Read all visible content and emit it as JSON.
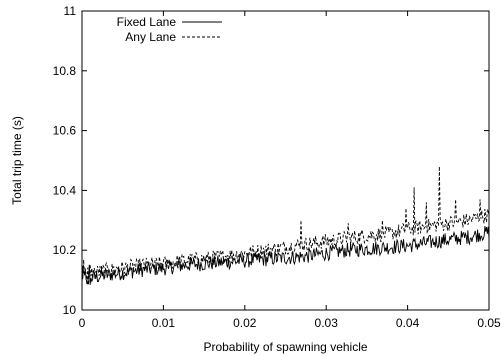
{
  "chart_data": {
    "type": "line",
    "xlabel": "Probability of spawning vehicle",
    "ylabel": "Total trip time (s)",
    "xlim": [
      0,
      0.05
    ],
    "ylim": [
      10,
      11
    ],
    "x_ticks": [
      "0",
      "0.01",
      "0.02",
      "0.03",
      "0.04",
      "0.05"
    ],
    "y_ticks": [
      "10",
      "10.2",
      "10.4",
      "10.6",
      "10.8",
      "11"
    ],
    "grid": false,
    "legend_position": "top-left",
    "series": [
      {
        "name": "Fixed Lane",
        "style": "solid",
        "x": [
          0,
          0.0025,
          0.005,
          0.0075,
          0.01,
          0.0125,
          0.015,
          0.0175,
          0.02,
          0.0225,
          0.025,
          0.0275,
          0.03,
          0.0325,
          0.035,
          0.0375,
          0.04,
          0.0425,
          0.045,
          0.0475,
          0.05
        ],
        "y": [
          10.1,
          10.115,
          10.125,
          10.135,
          10.14,
          10.15,
          10.155,
          10.16,
          10.165,
          10.17,
          10.175,
          10.18,
          10.19,
          10.2,
          10.205,
          10.21,
          10.215,
          10.225,
          10.235,
          10.245,
          10.26
        ]
      },
      {
        "name": "Any Lane",
        "style": "dashed",
        "x": [
          0,
          0.0025,
          0.005,
          0.0075,
          0.01,
          0.0125,
          0.015,
          0.0175,
          0.02,
          0.0225,
          0.025,
          0.0275,
          0.03,
          0.0325,
          0.035,
          0.0375,
          0.04,
          0.0425,
          0.045,
          0.0475,
          0.05
        ],
        "y": [
          10.12,
          10.13,
          10.14,
          10.15,
          10.155,
          10.165,
          10.17,
          10.18,
          10.19,
          10.2,
          10.21,
          10.22,
          10.23,
          10.24,
          10.25,
          10.255,
          10.27,
          10.28,
          10.29,
          10.3,
          10.32
        ]
      }
    ],
    "spikes": [
      {
        "series": "Any Lane",
        "x": 0.0269,
        "y": 10.3
      },
      {
        "series": "Any Lane",
        "x": 0.0327,
        "y": 10.29
      },
      {
        "series": "Any Lane",
        "x": 0.0369,
        "y": 10.3
      },
      {
        "series": "Any Lane",
        "x": 0.0398,
        "y": 10.34
      },
      {
        "series": "Any Lane",
        "x": 0.0408,
        "y": 10.41
      },
      {
        "series": "Any Lane",
        "x": 0.0423,
        "y": 10.36
      },
      {
        "series": "Any Lane",
        "x": 0.0439,
        "y": 10.48
      },
      {
        "series": "Any Lane",
        "x": 0.0459,
        "y": 10.37
      },
      {
        "series": "Any Lane",
        "x": 0.0489,
        "y": 10.37
      }
    ],
    "noise_amplitude": 0.025
  }
}
